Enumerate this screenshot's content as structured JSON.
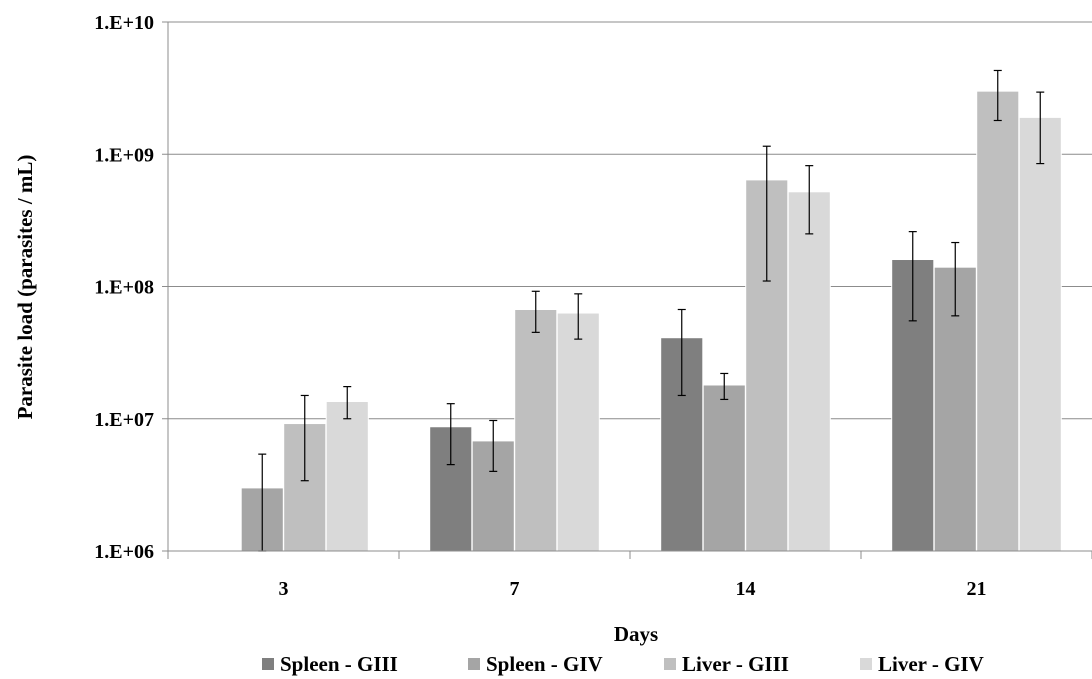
{
  "chart_data": {
    "type": "bar",
    "title": "",
    "xlabel": "Days",
    "ylabel": "Parasite load (parasites / mL)",
    "yscale": "log",
    "ylim": [
      1000000,
      10000000000
    ],
    "y_tick_labels": [
      "1.E+06",
      "1.E+07",
      "1.E+08",
      "1.E+09",
      "1.E+10"
    ],
    "grid": "horizontal",
    "legend_position": "bottom",
    "categories": [
      "3",
      "7",
      "14",
      "21"
    ],
    "series": [
      {
        "name": "Spleen - GIII",
        "color": "#7f7f7f",
        "values": [
          null,
          8700000,
          41000000,
          160000000
        ],
        "error_low": [
          null,
          4500000,
          15000000,
          55000000
        ],
        "error_high": [
          null,
          13000000,
          67000000,
          260000000
        ]
      },
      {
        "name": "Spleen - GIV",
        "color": "#a5a5a5",
        "values": [
          3000000,
          6800000,
          18000000,
          140000000
        ],
        "error_low": [
          1000000,
          4000000,
          14000000,
          60000000
        ],
        "error_high": [
          5400000,
          9700000,
          22000000,
          215000000
        ]
      },
      {
        "name": "Liver - GIII",
        "color": "#bfbfbf",
        "values": [
          9200000,
          67000000,
          640000000,
          3000000000
        ],
        "error_low": [
          3400000,
          45000000,
          110000000,
          1800000000
        ],
        "error_high": [
          15000000,
          92000000,
          1150000000,
          4300000000
        ]
      },
      {
        "name": "Liver - GIV",
        "color": "#d9d9d9",
        "values": [
          13500000,
          63000000,
          520000000,
          1900000000
        ],
        "error_low": [
          10000000,
          40000000,
          250000000,
          850000000
        ],
        "error_high": [
          17500000,
          88000000,
          820000000,
          2950000000
        ]
      }
    ]
  }
}
